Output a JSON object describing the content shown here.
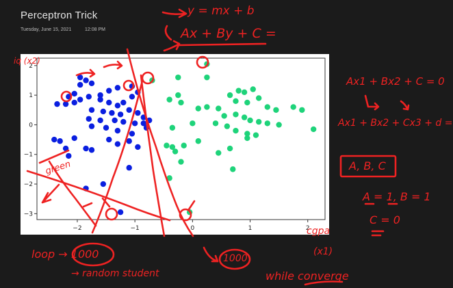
{
  "page": {
    "title": "Perceptron Trick",
    "date": "Tuesday, June 15, 2021",
    "time": "12:08 PM"
  },
  "colors": {
    "ink": "#ee2222",
    "class_blue": "#0a1fe0",
    "class_green": "#1ed37a"
  },
  "annotations": {
    "eq_line": "y = mx + b",
    "eq_general": "Ax + By + C =",
    "eq_2d": "Ax1 + Bx2 + C = 0",
    "eq_3d": "Ax1 + Bx2 + Cx3 + d = 0",
    "coeffs": "A, B, C",
    "init_ab": "A = 1, B = 1",
    "init_c": "C = 0",
    "loop": "loop → 1000",
    "loop_1000": "1000",
    "random": "→ random student",
    "while": "while converge",
    "cgpa": "cgpa",
    "x1": "(x1)",
    "iq": "iq (x2)",
    "green": "green"
  },
  "chart_data": {
    "type": "scatter",
    "xlim": [
      -2.7,
      2.3
    ],
    "ylim": [
      -3.2,
      2.25
    ],
    "xticks": [
      -2,
      -1,
      0,
      1,
      2
    ],
    "yticks": [
      -3,
      -2,
      -1,
      0,
      1,
      2
    ],
    "grid": false,
    "series": [
      {
        "color": "#0a1fe0",
        "points": [
          [
            -1.95,
            1.6
          ],
          [
            -1.85,
            1.5
          ],
          [
            -1.95,
            1.35
          ],
          [
            -1.75,
            1.4
          ],
          [
            -2.05,
            1.05
          ],
          [
            -2.15,
            0.95
          ],
          [
            -1.95,
            0.85
          ],
          [
            -2.05,
            0.75
          ],
          [
            -2.2,
            0.7
          ],
          [
            -2.35,
            0.7
          ],
          [
            -1.8,
            0.95
          ],
          [
            -1.6,
            1.0
          ],
          [
            -1.45,
            1.15
          ],
          [
            -1.3,
            1.25
          ],
          [
            -1.6,
            0.85
          ],
          [
            -1.45,
            0.75
          ],
          [
            -1.3,
            0.65
          ],
          [
            -1.2,
            0.75
          ],
          [
            -1.05,
            0.95
          ],
          [
            -0.95,
            1.1
          ],
          [
            -1.05,
            1.3
          ],
          [
            -1.75,
            0.5
          ],
          [
            -1.55,
            0.45
          ],
          [
            -1.4,
            0.4
          ],
          [
            -1.25,
            0.35
          ],
          [
            -1.1,
            0.5
          ],
          [
            -0.95,
            0.4
          ],
          [
            -0.85,
            0.25
          ],
          [
            -1.8,
            0.2
          ],
          [
            -1.6,
            0.15
          ],
          [
            -1.35,
            0.15
          ],
          [
            -1.2,
            0.1
          ],
          [
            -1.0,
            0.05
          ],
          [
            -0.85,
            0.05
          ],
          [
            -1.75,
            -0.05
          ],
          [
            -1.5,
            -0.1
          ],
          [
            -1.3,
            -0.2
          ],
          [
            -1.05,
            -0.3
          ],
          [
            -0.8,
            -0.1
          ],
          [
            -0.75,
            0.15
          ],
          [
            -1.45,
            -0.5
          ],
          [
            -1.3,
            -0.65
          ],
          [
            -1.1,
            -0.55
          ],
          [
            -0.95,
            -0.75
          ],
          [
            -1.85,
            -0.8
          ],
          [
            -1.75,
            -0.85
          ],
          [
            -2.2,
            -0.8
          ],
          [
            -2.15,
            -1.05
          ],
          [
            -2.4,
            -0.5
          ],
          [
            -2.3,
            -0.55
          ],
          [
            -2.05,
            -0.45
          ],
          [
            -1.1,
            -1.45
          ],
          [
            -1.55,
            -2.0
          ],
          [
            -1.85,
            -2.15
          ],
          [
            -1.25,
            -2.95
          ]
        ]
      },
      {
        "color": "#1ed37a",
        "points": [
          [
            0.25,
            2.05
          ],
          [
            -0.7,
            1.5
          ],
          [
            -0.25,
            1.6
          ],
          [
            0.25,
            1.6
          ],
          [
            -0.25,
            1.0
          ],
          [
            -0.4,
            0.85
          ],
          [
            -0.2,
            0.75
          ],
          [
            0.1,
            0.55
          ],
          [
            0.25,
            0.6
          ],
          [
            0.45,
            0.55
          ],
          [
            0.65,
            1.0
          ],
          [
            0.8,
            1.15
          ],
          [
            0.9,
            1.1
          ],
          [
            1.05,
            1.2
          ],
          [
            0.75,
            0.8
          ],
          [
            0.95,
            0.75
          ],
          [
            1.15,
            0.9
          ],
          [
            1.3,
            0.6
          ],
          [
            1.45,
            0.5
          ],
          [
            0.55,
            0.3
          ],
          [
            0.75,
            0.35
          ],
          [
            0.9,
            0.25
          ],
          [
            1.0,
            0.15
          ],
          [
            1.15,
            0.1
          ],
          [
            1.3,
            0.05
          ],
          [
            1.5,
            0.0
          ],
          [
            1.75,
            0.6
          ],
          [
            1.9,
            0.5
          ],
          [
            2.1,
            -0.15
          ],
          [
            0.4,
            0.05
          ],
          [
            0.6,
            -0.05
          ],
          [
            0.75,
            -0.2
          ],
          [
            0.95,
            -0.3
          ],
          [
            1.1,
            -0.35
          ],
          [
            0.0,
            0.05
          ],
          [
            -0.35,
            -0.1
          ],
          [
            -0.45,
            -0.7
          ],
          [
            -0.35,
            -0.75
          ],
          [
            -0.3,
            -0.9
          ],
          [
            -0.15,
            -0.7
          ],
          [
            0.1,
            -0.55
          ],
          [
            -0.2,
            -1.25
          ],
          [
            0.45,
            -0.95
          ],
          [
            0.65,
            -0.8
          ],
          [
            0.7,
            -1.5
          ],
          [
            -0.4,
            -1.8
          ],
          [
            -0.05,
            -2.95
          ],
          [
            0.95,
            -0.45
          ]
        ]
      }
    ]
  }
}
